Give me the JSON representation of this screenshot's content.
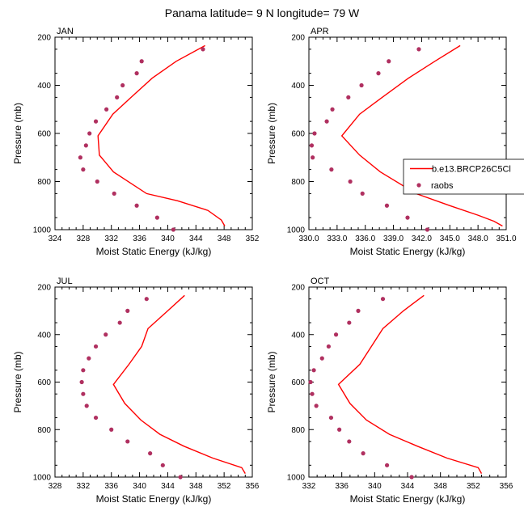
{
  "page": {
    "title": "Panama  latitude= 9 N longitude= 79 W"
  },
  "colors": {
    "model_line": "#ff0000",
    "obs_marker": "#b03060",
    "axis": "#000000"
  },
  "legend": {
    "model_label": "b.e13.BRCP26C5Cl",
    "obs_label": "raobs",
    "panel": "APR"
  },
  "chart_data": [
    {
      "type": "line",
      "title": "JAN",
      "xlabel": "Moist Static Energy (kJ/kg)",
      "ylabel": "Pressure (mb)",
      "xlim": [
        324,
        352
      ],
      "ylim": [
        1000,
        200
      ],
      "xticks": [
        "324",
        "328",
        "332",
        "336",
        "340",
        "344",
        "348",
        "352"
      ],
      "yticks": [
        "200",
        "400",
        "600",
        "800",
        "1000"
      ],
      "series": [
        {
          "name": "b.e13.BRCP26C5Cl",
          "kind": "line",
          "p": [
            235,
            300,
            370,
            450,
            520,
            610,
            690,
            760,
            850,
            880,
            920,
            960,
            985
          ],
          "mse": [
            345.3,
            341.2,
            337.8,
            334.8,
            332.2,
            330.1,
            330.3,
            332.3,
            337.0,
            341.4,
            345.7,
            347.6,
            348.1
          ]
        },
        {
          "name": "raobs",
          "kind": "markers",
          "p": [
            250,
            300,
            350,
            400,
            450,
            500,
            550,
            600,
            650,
            700,
            750,
            800,
            850,
            900,
            950,
            1000
          ],
          "mse": [
            345.0,
            336.3,
            335.6,
            333.6,
            332.8,
            331.3,
            329.8,
            328.9,
            328.4,
            327.6,
            328.0,
            330.0,
            332.4,
            335.6,
            338.5,
            340.8
          ]
        }
      ]
    },
    {
      "type": "line",
      "title": "APR",
      "xlabel": "Moist Static Energy (kJ/kg)",
      "ylabel": "Pressure (mb)",
      "xlim": [
        330,
        351
      ],
      "ylim": [
        1000,
        200
      ],
      "xticks": [
        "330.0",
        "333.0",
        "336.0",
        "339.0",
        "342.0",
        "345.0",
        "348.0",
        "351.0"
      ],
      "yticks": [
        "200",
        "400",
        "600",
        "800",
        "1000"
      ],
      "series": [
        {
          "name": "b.e13.BRCP26C5Cl",
          "kind": "line",
          "p": [
            235,
            300,
            370,
            450,
            520,
            610,
            690,
            760,
            850,
            900,
            940,
            965,
            985
          ],
          "mse": [
            346.1,
            343.4,
            340.6,
            337.8,
            335.4,
            333.5,
            335.4,
            337.6,
            341.4,
            345.0,
            348.0,
            349.7,
            350.6
          ]
        },
        {
          "name": "raobs",
          "kind": "markers",
          "p": [
            250,
            300,
            350,
            400,
            450,
            500,
            550,
            600,
            650,
            700,
            750,
            800,
            850,
            900,
            950,
            1000
          ],
          "mse": [
            341.7,
            338.5,
            337.4,
            335.6,
            334.2,
            332.5,
            331.9,
            330.6,
            330.3,
            330.4,
            332.4,
            334.4,
            335.7,
            338.3,
            340.5,
            342.6
          ]
        }
      ]
    },
    {
      "type": "line",
      "title": "JUL",
      "xlabel": "Moist Static Energy (kJ/kg)",
      "ylabel": "Pressure (mb)",
      "xlim": [
        328,
        356
      ],
      "ylim": [
        1000,
        200
      ],
      "xticks": [
        "328",
        "332",
        "336",
        "340",
        "344",
        "348",
        "352",
        "356"
      ],
      "yticks": [
        "200",
        "400",
        "600",
        "800",
        "1000"
      ],
      "series": [
        {
          "name": "b.e13.BRCP26C5Cl",
          "kind": "line",
          "p": [
            235,
            300,
            375,
            450,
            525,
            610,
            690,
            760,
            820,
            870,
            920,
            960,
            985
          ],
          "mse": [
            346.4,
            344.0,
            341.2,
            340.3,
            338.5,
            336.3,
            337.9,
            340.2,
            342.9,
            346.3,
            350.4,
            354.5,
            355.0
          ]
        },
        {
          "name": "raobs",
          "kind": "markers",
          "p": [
            250,
            300,
            350,
            400,
            450,
            500,
            550,
            600,
            650,
            700,
            750,
            800,
            850,
            900,
            950,
            1000
          ],
          "mse": [
            341.0,
            338.3,
            337.2,
            335.2,
            333.8,
            332.8,
            332.0,
            331.8,
            332.0,
            332.5,
            333.8,
            336.0,
            338.3,
            341.5,
            343.3,
            345.8
          ]
        }
      ]
    },
    {
      "type": "line",
      "title": "OCT",
      "xlabel": "Moist Static Energy (kJ/kg)",
      "ylabel": "Pressure (mb)",
      "xlim": [
        332,
        356
      ],
      "ylim": [
        1000,
        200
      ],
      "xticks": [
        "332",
        "336",
        "340",
        "344",
        "348",
        "352",
        "356"
      ],
      "yticks": [
        "200",
        "400",
        "600",
        "800",
        "1000"
      ],
      "series": [
        {
          "name": "b.e13.BRCP26C5Cl",
          "kind": "line",
          "p": [
            235,
            300,
            375,
            450,
            525,
            610,
            690,
            760,
            820,
            870,
            920,
            960,
            985
          ],
          "mse": [
            346.0,
            343.5,
            341.0,
            339.6,
            338.2,
            335.6,
            337.0,
            339.0,
            341.8,
            345.2,
            348.8,
            352.6,
            353.0
          ]
        },
        {
          "name": "raobs",
          "kind": "markers",
          "p": [
            250,
            300,
            350,
            400,
            450,
            500,
            550,
            600,
            650,
            700,
            750,
            800,
            850,
            900,
            950,
            1000
          ],
          "mse": [
            341.0,
            338.0,
            336.9,
            335.3,
            334.4,
            333.6,
            332.6,
            332.2,
            332.4,
            332.9,
            334.7,
            335.7,
            336.9,
            338.6,
            341.5,
            344.5
          ]
        }
      ]
    }
  ]
}
